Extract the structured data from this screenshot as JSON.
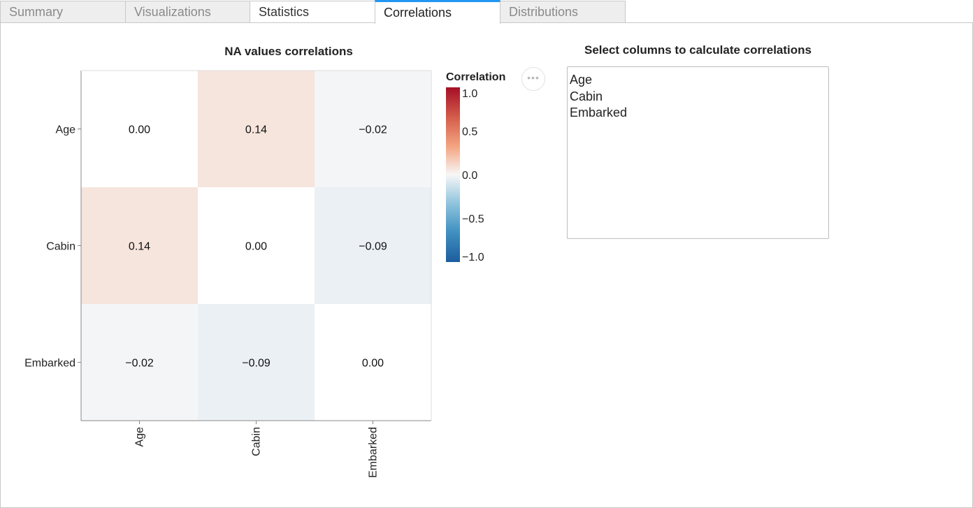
{
  "tabs": [
    {
      "label": "Summary",
      "state": "inactive"
    },
    {
      "label": "Visualizations",
      "state": "inactive"
    },
    {
      "label": "Statistics",
      "state": "normal"
    },
    {
      "label": "Correlations",
      "state": "active"
    },
    {
      "label": "Distributions",
      "state": "inactive"
    }
  ],
  "chart_data": {
    "type": "heatmap",
    "title": "NA values correlations",
    "rows": [
      "Age",
      "Cabin",
      "Embarked"
    ],
    "columns": [
      "Age",
      "Cabin",
      "Embarked"
    ],
    "values": [
      [
        0.0,
        0.14,
        -0.02
      ],
      [
        0.14,
        0.0,
        -0.09
      ],
      [
        -0.02,
        -0.09,
        0.0
      ]
    ],
    "cell_labels": [
      [
        "0.00",
        "0.14",
        "−0.02"
      ],
      [
        "0.14",
        "0.00",
        "−0.09"
      ],
      [
        "−0.02",
        "−0.09",
        "0.00"
      ]
    ],
    "legend": {
      "title": "Correlation",
      "domain": [
        -1,
        1
      ],
      "ticks": [
        1.0,
        0.5,
        0.0,
        -0.5,
        -1.0
      ],
      "tick_labels": [
        "1.0",
        "0.5",
        "0.0",
        "−0.5",
        "−1.0"
      ],
      "colors": [
        "#b2182b",
        "#ef8a62",
        "#fddbc7",
        "#f7f7f7",
        "#d1e5f0",
        "#67a9cf",
        "#2166ac"
      ],
      "placement": "right"
    }
  },
  "column_selector": {
    "title": "Select columns to calculate correlations",
    "options": [
      "Age",
      "Cabin",
      "Embarked"
    ]
  },
  "menu_button": {
    "glyph": "•••"
  }
}
